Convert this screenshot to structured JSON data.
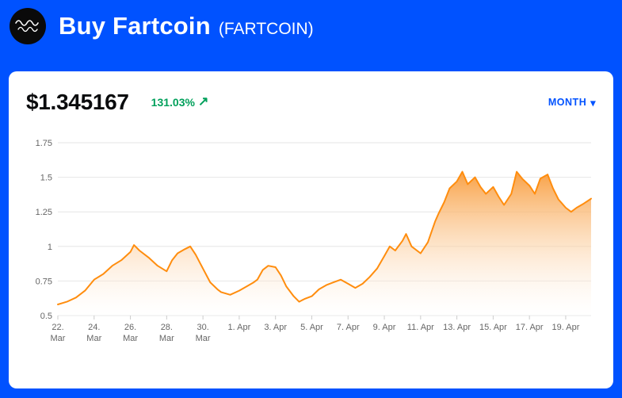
{
  "theme": {
    "background": "#0052ff",
    "card": "#ffffff",
    "accent_blue": "#0052ff",
    "positive_green": "#00a05b",
    "price_text": "#0a0b0d",
    "axis_label_gray": "#666666",
    "gridline": "#e6e6e6",
    "chart_orange": "#ff8d0e"
  },
  "header": {
    "title": "Buy Fartcoin",
    "ticker": "(FARTCOIN)"
  },
  "price_panel": {
    "price": "$1.345167",
    "change_percent": "131.03%",
    "change_arrow": "↗",
    "period_label": "MONTH",
    "period_caret": "▾"
  },
  "chart_data": {
    "type": "area",
    "title": "",
    "xlabel": "",
    "ylabel": "",
    "x_unit": "days since Mar 22",
    "x": [
      0,
      0.5,
      1,
      1.5,
      2,
      2.5,
      3,
      3.5,
      4,
      4.2,
      4.5,
      5,
      5.5,
      6,
      6.3,
      6.6,
      7,
      7.3,
      7.6,
      8,
      8.4,
      8.8,
      9,
      9.5,
      10,
      10.4,
      10.8,
      11,
      11.3,
      11.6,
      12,
      12.3,
      12.6,
      13,
      13.3,
      13.6,
      14,
      14.4,
      14.8,
      15.2,
      15.6,
      16,
      16.4,
      16.8,
      17.2,
      17.6,
      18,
      18.3,
      18.6,
      19,
      19.2,
      19.5,
      20,
      20.4,
      20.8,
      21,
      21.3,
      21.6,
      22,
      22.3,
      22.6,
      23,
      23.3,
      23.6,
      24,
      24.3,
      24.6,
      25,
      25.3,
      25.6,
      26,
      26.3,
      26.6,
      27,
      27.3,
      27.6,
      28,
      28.3,
      28.6,
      29,
      29.4
    ],
    "values": [
      0.58,
      0.6,
      0.63,
      0.68,
      0.76,
      0.8,
      0.86,
      0.9,
      0.96,
      1.01,
      0.97,
      0.92,
      0.86,
      0.82,
      0.9,
      0.95,
      0.98,
      1.0,
      0.94,
      0.84,
      0.74,
      0.69,
      0.67,
      0.65,
      0.68,
      0.71,
      0.74,
      0.76,
      0.83,
      0.86,
      0.85,
      0.79,
      0.71,
      0.64,
      0.6,
      0.62,
      0.64,
      0.69,
      0.72,
      0.74,
      0.76,
      0.73,
      0.7,
      0.73,
      0.78,
      0.84,
      0.93,
      1.0,
      0.97,
      1.04,
      1.09,
      1.0,
      0.95,
      1.03,
      1.18,
      1.24,
      1.32,
      1.42,
      1.47,
      1.54,
      1.45,
      1.5,
      1.43,
      1.38,
      1.43,
      1.36,
      1.3,
      1.38,
      1.54,
      1.49,
      1.44,
      1.38,
      1.49,
      1.52,
      1.42,
      1.34,
      1.28,
      1.25,
      1.28,
      1.31,
      1.345
    ],
    "x_tick_positions": [
      0,
      2,
      4,
      6,
      8,
      10,
      12,
      14,
      16,
      18,
      20,
      22,
      24,
      26,
      28
    ],
    "x_tick_labels": [
      [
        "22.",
        "Mar"
      ],
      [
        "24.",
        "Mar"
      ],
      [
        "26.",
        "Mar"
      ],
      [
        "28.",
        "Mar"
      ],
      [
        "30.",
        "Mar"
      ],
      [
        "1. Apr"
      ],
      [
        "3. Apr"
      ],
      [
        "5. Apr"
      ],
      [
        "7. Apr"
      ],
      [
        "9. Apr"
      ],
      [
        "11. Apr"
      ],
      [
        "13. Apr"
      ],
      [
        "15. Apr"
      ],
      [
        "17. Apr"
      ],
      [
        "19. Apr"
      ]
    ],
    "y_ticks": [
      0.5,
      0.75,
      1,
      1.25,
      1.5,
      1.75
    ],
    "ylim": [
      0.5,
      1.75
    ],
    "grid": true,
    "legend": false,
    "line_color": "#ff8d0e",
    "fill_top": "#f89c3c",
    "fill_bottom": "#ffffff"
  }
}
